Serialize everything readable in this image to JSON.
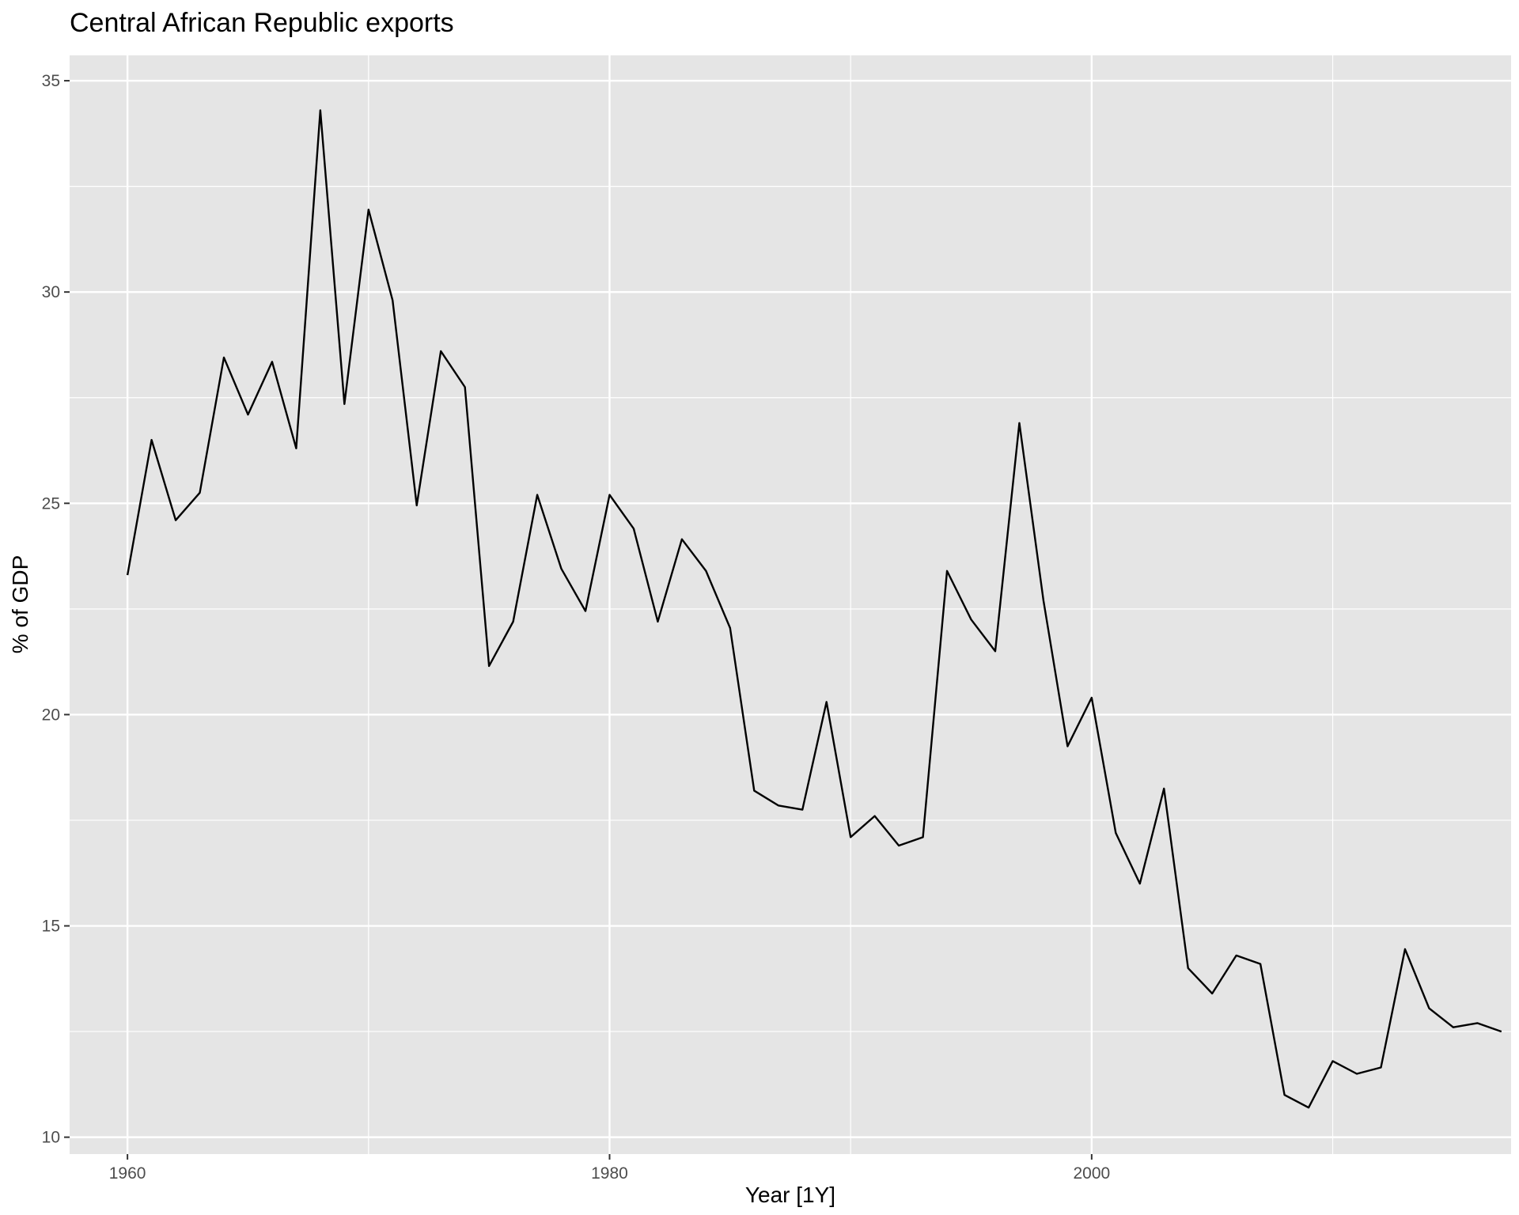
{
  "chart_data": {
    "type": "line",
    "title": "Central African Republic exports",
    "xlabel": "Year [1Y]",
    "ylabel": "% of GDP",
    "xlim": [
      1957.6,
      2017.4
    ],
    "ylim": [
      9.6,
      35.6
    ],
    "x_ticks": [
      1960,
      1980,
      2000
    ],
    "x_minor_ticks": [
      1970,
      1990,
      2010
    ],
    "y_ticks": [
      10,
      15,
      20,
      25,
      30,
      35
    ],
    "y_minor_ticks": [
      12.5,
      17.5,
      22.5,
      27.5,
      32.5
    ],
    "grid": true,
    "legend": "none",
    "colors": {
      "panel": "#e5e5e5",
      "grid": "#ffffff",
      "line": "#000000",
      "tick_text": "#4d4d4d"
    },
    "series": [
      {
        "x": [
          1960,
          1961,
          1962,
          1963,
          1964,
          1965,
          1966,
          1967,
          1968,
          1969,
          1970,
          1971,
          1972,
          1973,
          1974,
          1975,
          1976,
          1977,
          1978,
          1979,
          1980,
          1981,
          1982,
          1983,
          1984,
          1985,
          1986,
          1987,
          1988,
          1989,
          1990,
          1991,
          1992,
          1993,
          1994,
          1995,
          1996,
          1997,
          1998,
          1999,
          2000,
          2001,
          2002,
          2003,
          2004,
          2005,
          2006,
          2007,
          2008,
          2009,
          2010,
          2011,
          2012,
          2013,
          2014,
          2015,
          2016,
          2017
        ],
        "values": [
          23.3,
          26.5,
          24.6,
          25.25,
          28.45,
          27.1,
          28.35,
          26.3,
          34.3,
          27.35,
          31.95,
          29.8,
          24.95,
          28.6,
          27.75,
          21.15,
          22.2,
          25.2,
          23.45,
          22.45,
          25.2,
          24.4,
          22.2,
          24.15,
          23.4,
          22.05,
          18.2,
          17.85,
          17.75,
          20.3,
          17.1,
          17.6,
          16.9,
          17.1,
          23.4,
          22.25,
          21.5,
          26.9,
          22.7,
          19.25,
          20.4,
          17.2,
          16.0,
          18.25,
          14.0,
          13.4,
          14.3,
          14.1,
          11.0,
          10.7,
          11.8,
          11.5,
          11.65,
          14.45,
          13.05,
          12.6,
          12.7,
          12.5
        ]
      }
    ]
  }
}
